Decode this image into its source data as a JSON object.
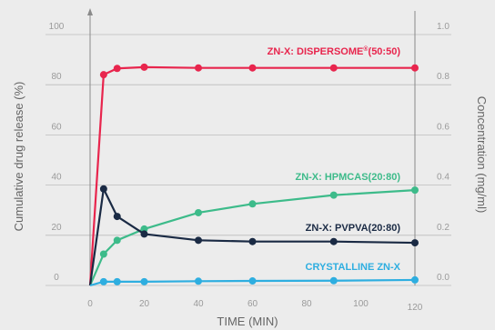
{
  "chart_data": {
    "type": "line",
    "title": "",
    "xlabel": "TIME (MIN)",
    "ylabel": "Cumulative drug release (%)",
    "y2label": "Concentration (mg/ml)",
    "xlim": [
      0,
      120
    ],
    "ylim": [
      0,
      100
    ],
    "y2lim": [
      0,
      1.0
    ],
    "x_ticks": [
      0,
      20,
      40,
      60,
      80,
      100,
      120
    ],
    "y_ticks": [
      0,
      20,
      40,
      60,
      80,
      100
    ],
    "y2_ticks": [
      "0.0",
      "0.2",
      "0.4",
      "0.6",
      "0.8",
      "1.0"
    ],
    "grid": true,
    "series": [
      {
        "name": "ZN-X: DISPERSOME",
        "name_sup": "®",
        "name_suffix": "(50:50)",
        "color": "#e8254d",
        "x": [
          0,
          5,
          10,
          20,
          40,
          60,
          90,
          120
        ],
        "y": [
          0,
          84,
          86.5,
          87,
          86.7,
          86.7,
          86.7,
          86.7
        ]
      },
      {
        "name": "ZN-X: HPMCAS(20:80)",
        "color": "#3dbb8a",
        "x": [
          0,
          5,
          10,
          20,
          40,
          60,
          90,
          120
        ],
        "y": [
          0,
          12.5,
          18,
          22.5,
          29,
          32.5,
          36,
          38
        ]
      },
      {
        "name": "ZN-X: PVPVA(20:80)",
        "color": "#1a2a44",
        "x": [
          0,
          5,
          10,
          20,
          40,
          60,
          90,
          120
        ],
        "y": [
          0,
          38.5,
          27.5,
          20.5,
          18,
          17.5,
          17.5,
          17
        ]
      },
      {
        "name": "CRYSTALLINE ZN-X",
        "color": "#2eaee0",
        "x": [
          0,
          5,
          10,
          20,
          40,
          60,
          90,
          120
        ],
        "y": [
          0,
          1.5,
          1.5,
          1.5,
          1.7,
          1.8,
          1.9,
          2.2
        ]
      }
    ]
  }
}
